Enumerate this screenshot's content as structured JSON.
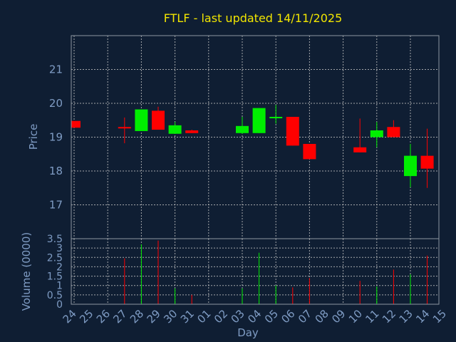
{
  "colors": {
    "background": "#0f1e33",
    "up": "#00ee00",
    "down": "#ff0000",
    "title": "#f2e600",
    "label": "#7f9cc4"
  },
  "chart_data": {
    "type": "candlestick",
    "title": "FTLF - last updated 14/11/2025",
    "xlabel": "Day",
    "ylabel": "Price",
    "volume_ylabel": "Volume (0000)",
    "price_ylim": [
      16.0,
      22.0
    ],
    "price_ticks": [
      "17",
      "18",
      "19",
      "20",
      "21"
    ],
    "volume_ylim": [
      0,
      3.5
    ],
    "volume_ticks": [
      "0",
      "0.5",
      "1",
      "1.5",
      "2",
      "2.5",
      "3",
      "3.5"
    ],
    "grid": true,
    "x_labels": [
      "24",
      "25",
      "26",
      "27",
      "28",
      "29",
      "30",
      "31",
      "01",
      "02",
      "03",
      "04",
      "05",
      "06",
      "07",
      "08",
      "09",
      "10",
      "11",
      "12",
      "13",
      "14",
      "15"
    ],
    "candles": [
      {
        "x": "24",
        "open": 19.48,
        "close": 19.28,
        "high": 19.48,
        "low": 19.28,
        "volume": 0
      },
      {
        "x": "27",
        "open": 19.3,
        "close": 19.27,
        "high": 19.58,
        "low": 18.82,
        "volume": 2.45
      },
      {
        "x": "28",
        "open": 19.18,
        "close": 19.82,
        "high": 19.82,
        "low": 19.18,
        "volume": 3.2
      },
      {
        "x": "29",
        "open": 19.78,
        "close": 19.22,
        "high": 19.9,
        "low": 19.22,
        "volume": 3.4
      },
      {
        "x": "30",
        "open": 19.1,
        "close": 19.35,
        "high": 19.45,
        "low": 19.1,
        "volume": 0.85
      },
      {
        "x": "31",
        "open": 19.2,
        "close": 19.12,
        "high": 19.22,
        "low": 19.12,
        "volume": 0.5
      },
      {
        "x": "03",
        "open": 19.12,
        "close": 19.33,
        "high": 19.6,
        "low": 19.1,
        "volume": 0.85
      },
      {
        "x": "04",
        "open": 19.12,
        "close": 19.86,
        "high": 19.86,
        "low": 19.12,
        "volume": 2.75
      },
      {
        "x": "05",
        "open": 19.58,
        "close": 19.6,
        "high": 19.95,
        "low": 19.4,
        "volume": 1.0
      },
      {
        "x": "06",
        "open": 19.6,
        "close": 18.75,
        "high": 19.6,
        "low": 18.75,
        "volume": 0.9
      },
      {
        "x": "07",
        "open": 18.8,
        "close": 18.35,
        "high": 18.8,
        "low": 18.35,
        "volume": 1.4
      },
      {
        "x": "10",
        "open": 18.7,
        "close": 18.55,
        "high": 19.55,
        "low": 18.55,
        "volume": 1.25
      },
      {
        "x": "11",
        "open": 19.0,
        "close": 19.2,
        "high": 19.45,
        "low": 18.7,
        "volume": 0.95
      },
      {
        "x": "12",
        "open": 19.3,
        "close": 19.0,
        "high": 19.5,
        "low": 19.0,
        "volume": 1.85
      },
      {
        "x": "13",
        "open": 17.85,
        "close": 18.45,
        "high": 18.8,
        "low": 17.52,
        "volume": 1.6
      },
      {
        "x": "14",
        "open": 18.45,
        "close": 18.07,
        "high": 19.25,
        "low": 17.5,
        "volume": 2.6
      }
    ]
  }
}
